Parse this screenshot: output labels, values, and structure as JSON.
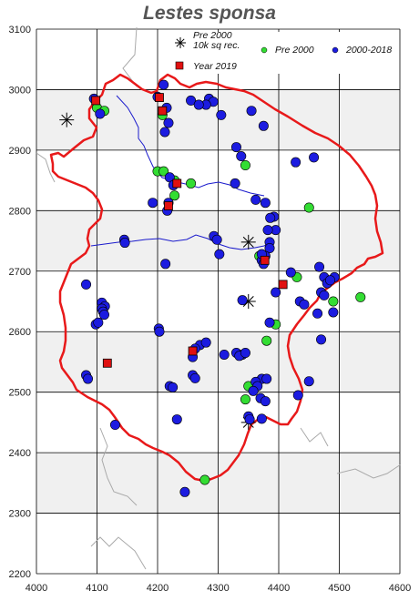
{
  "title": "Lestes sponsa",
  "legend": {
    "pre2000_10k": "Pre 2000\n10k sq rec.",
    "pre2000": "Pre 2000",
    "y2000_2018": "2000-2018",
    "year2019": "Year 2019"
  },
  "colors": {
    "boundary": "#e8191a",
    "river": "#1a1acc",
    "green": "#33dd33",
    "blue": "#1c1ce0",
    "red": "#e01010",
    "band": "#f0f0f0"
  },
  "chart_data": {
    "type": "scatter",
    "title": "Lestes sponsa",
    "xlim": [
      4000,
      4600
    ],
    "ylim": [
      2200,
      3100
    ],
    "x_ticks": [
      4000,
      4100,
      4200,
      4300,
      4400,
      4500,
      4600
    ],
    "y_ticks": [
      2200,
      2300,
      2400,
      2500,
      2600,
      2700,
      2800,
      2900,
      3000,
      3100
    ],
    "legend_position": "top-right",
    "series": [
      {
        "name": "Pre 2000 10k sq rec.",
        "marker": "asterisk",
        "points": [
          [
            4050,
            2950
          ],
          [
            4350,
            2748
          ],
          [
            4350,
            2650
          ],
          [
            4350,
            2450
          ]
        ]
      },
      {
        "name": "Pre 2000",
        "marker": "circle",
        "color": "#33dd33",
        "points": [
          [
            4100,
            2970
          ],
          [
            4112,
            2965
          ],
          [
            4208,
            2958
          ],
          [
            4200,
            2865
          ],
          [
            4210,
            2865
          ],
          [
            4228,
            2850
          ],
          [
            4228,
            2825
          ],
          [
            4255,
            2845
          ],
          [
            4345,
            2875
          ],
          [
            4450,
            2805
          ],
          [
            4368,
            2725
          ],
          [
            4430,
            2690
          ],
          [
            4395,
            2612
          ],
          [
            4380,
            2585
          ],
          [
            4490,
            2650
          ],
          [
            4535,
            2657
          ],
          [
            4350,
            2510
          ],
          [
            4345,
            2488
          ],
          [
            4278,
            2355
          ]
        ]
      },
      {
        "name": "2000-2018",
        "marker": "circle",
        "color": "#1c1ce0",
        "points": [
          [
            4210,
            3008
          ],
          [
            4095,
            2985
          ],
          [
            4200,
            2988
          ],
          [
            4255,
            2982
          ],
          [
            4285,
            2985
          ],
          [
            4292,
            2980
          ],
          [
            4280,
            2975
          ],
          [
            4268,
            2975
          ],
          [
            4215,
            2970
          ],
          [
            4105,
            2960
          ],
          [
            4218,
            2945
          ],
          [
            4212,
            2930
          ],
          [
            4305,
            2958
          ],
          [
            4355,
            2965
          ],
          [
            4375,
            2940
          ],
          [
            4330,
            2905
          ],
          [
            4338,
            2890
          ],
          [
            4428,
            2880
          ],
          [
            4458,
            2888
          ],
          [
            4220,
            2855
          ],
          [
            4226,
            2842
          ],
          [
            4328,
            2845
          ],
          [
            4362,
            2818
          ],
          [
            4192,
            2813
          ],
          [
            4218,
            2813
          ],
          [
            4378,
            2813
          ],
          [
            4392,
            2790
          ],
          [
            4386,
            2788
          ],
          [
            4395,
            2768
          ],
          [
            4382,
            2768
          ],
          [
            4385,
            2748
          ],
          [
            4385,
            2738
          ],
          [
            4293,
            2758
          ],
          [
            4298,
            2752
          ],
          [
            4216,
            2800
          ],
          [
            4145,
            2752
          ],
          [
            4146,
            2747
          ],
          [
            4213,
            2712
          ],
          [
            4302,
            2728
          ],
          [
            4372,
            2718
          ],
          [
            4375,
            2712
          ],
          [
            4378,
            2725
          ],
          [
            4420,
            2698
          ],
          [
            4467,
            2707
          ],
          [
            4475,
            2690
          ],
          [
            4480,
            2680
          ],
          [
            4492,
            2690
          ],
          [
            4485,
            2685
          ],
          [
            4395,
            2665
          ],
          [
            4470,
            2665
          ],
          [
            4475,
            2660
          ],
          [
            4435,
            2650
          ],
          [
            4442,
            2645
          ],
          [
            4490,
            2632
          ],
          [
            4464,
            2630
          ],
          [
            4082,
            2678
          ],
          [
            4108,
            2648
          ],
          [
            4113,
            2642
          ],
          [
            4108,
            2638
          ],
          [
            4110,
            2633
          ],
          [
            4112,
            2628
          ],
          [
            4098,
            2612
          ],
          [
            4102,
            2615
          ],
          [
            4340,
            2652
          ],
          [
            4385,
            2615
          ],
          [
            4202,
            2605
          ],
          [
            4203,
            2600
          ],
          [
            4470,
            2587
          ],
          [
            4270,
            2578
          ],
          [
            4280,
            2582
          ],
          [
            4262,
            2572
          ],
          [
            4330,
            2565
          ],
          [
            4340,
            2562
          ],
          [
            4335,
            2560
          ],
          [
            4345,
            2565
          ],
          [
            4310,
            2562
          ],
          [
            4258,
            2558
          ],
          [
            4258,
            2528
          ],
          [
            4262,
            2523
          ],
          [
            4372,
            2522
          ],
          [
            4362,
            2517
          ],
          [
            4365,
            2510
          ],
          [
            4380,
            2522
          ],
          [
            4450,
            2518
          ],
          [
            4220,
            2510
          ],
          [
            4225,
            2508
          ],
          [
            4082,
            2528
          ],
          [
            4085,
            2522
          ],
          [
            4358,
            2502
          ],
          [
            4370,
            2490
          ],
          [
            4378,
            2485
          ],
          [
            4432,
            2495
          ],
          [
            4350,
            2460
          ],
          [
            4352,
            2455
          ],
          [
            4372,
            2456
          ],
          [
            4232,
            2455
          ],
          [
            4130,
            2446
          ],
          [
            4245,
            2335
          ],
          [
            4372,
            2728
          ]
        ]
      },
      {
        "name": "Year 2019",
        "marker": "square",
        "color": "#e01010",
        "points": [
          [
            4098,
            2982
          ],
          [
            4203,
            2987
          ],
          [
            4208,
            2965
          ],
          [
            4232,
            2845
          ],
          [
            4218,
            2808
          ],
          [
            4377,
            2718
          ],
          [
            4407,
            2678
          ],
          [
            4117,
            2548
          ],
          [
            4258,
            2568
          ]
        ]
      }
    ]
  }
}
